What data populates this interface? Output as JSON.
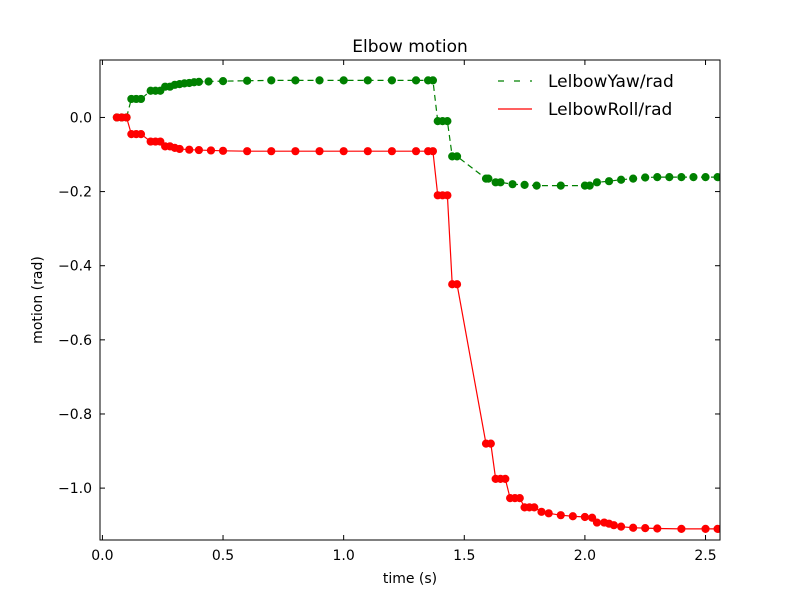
{
  "chart_data": {
    "type": "line",
    "title": "Elbow motion",
    "xlabel": "time (s)",
    "ylabel": "motion (rad)",
    "xlim": [
      -0.01,
      2.56
    ],
    "ylim": [
      -1.14,
      0.155
    ],
    "xticks": [
      0.0,
      0.5,
      1.0,
      1.5,
      2.0,
      2.5
    ],
    "xtick_labels": [
      "0.0",
      "0.5",
      "1.0",
      "1.5",
      "2.0",
      "2.5"
    ],
    "yticks": [
      0.0,
      -0.2,
      -0.4,
      -0.6,
      -0.8,
      -1.0
    ],
    "ytick_labels": [
      "0.0",
      "−0.2",
      "−0.4",
      "−0.6",
      "−0.8",
      "−1.0"
    ],
    "grid": false,
    "legend_position": "top-right",
    "series": [
      {
        "name": "LelbowYaw/rad",
        "color": "#008000",
        "line_style": "dashed",
        "marker": "circle",
        "points": [
          [
            0.06,
            0.0
          ],
          [
            0.08,
            0.0
          ],
          [
            0.1,
            0.0
          ],
          [
            0.12,
            0.05
          ],
          [
            0.14,
            0.05
          ],
          [
            0.16,
            0.05
          ],
          [
            0.2,
            0.072
          ],
          [
            0.22,
            0.072
          ],
          [
            0.24,
            0.072
          ],
          [
            0.26,
            0.083
          ],
          [
            0.28,
            0.083
          ],
          [
            0.3,
            0.088
          ],
          [
            0.32,
            0.09
          ],
          [
            0.34,
            0.092
          ],
          [
            0.36,
            0.093
          ],
          [
            0.38,
            0.095
          ],
          [
            0.4,
            0.096
          ],
          [
            0.44,
            0.097
          ],
          [
            0.5,
            0.098
          ],
          [
            0.6,
            0.099
          ],
          [
            0.7,
            0.1
          ],
          [
            0.8,
            0.1
          ],
          [
            0.9,
            0.1
          ],
          [
            1.0,
            0.1
          ],
          [
            1.1,
            0.1
          ],
          [
            1.2,
            0.1
          ],
          [
            1.3,
            0.1
          ],
          [
            1.35,
            0.1
          ],
          [
            1.37,
            0.1
          ],
          [
            1.39,
            -0.01
          ],
          [
            1.41,
            -0.01
          ],
          [
            1.43,
            -0.01
          ],
          [
            1.45,
            -0.105
          ],
          [
            1.47,
            -0.105
          ],
          [
            1.59,
            -0.165
          ],
          [
            1.6,
            -0.165
          ],
          [
            1.63,
            -0.175
          ],
          [
            1.65,
            -0.175
          ],
          [
            1.7,
            -0.18
          ],
          [
            1.75,
            -0.182
          ],
          [
            1.8,
            -0.184
          ],
          [
            1.9,
            -0.184
          ],
          [
            2.0,
            -0.184
          ],
          [
            2.02,
            -0.184
          ],
          [
            2.05,
            -0.175
          ],
          [
            2.1,
            -0.172
          ],
          [
            2.15,
            -0.168
          ],
          [
            2.2,
            -0.165
          ],
          [
            2.25,
            -0.162
          ],
          [
            2.3,
            -0.161
          ],
          [
            2.35,
            -0.161
          ],
          [
            2.4,
            -0.161
          ],
          [
            2.45,
            -0.161
          ],
          [
            2.5,
            -0.161
          ],
          [
            2.55,
            -0.161
          ]
        ]
      },
      {
        "name": "LelbowRoll/rad",
        "color": "#ff0000",
        "line_style": "solid",
        "marker": "circle",
        "points": [
          [
            0.06,
            0.0
          ],
          [
            0.08,
            0.0
          ],
          [
            0.1,
            0.0
          ],
          [
            0.12,
            -0.045
          ],
          [
            0.14,
            -0.045
          ],
          [
            0.16,
            -0.045
          ],
          [
            0.2,
            -0.065
          ],
          [
            0.22,
            -0.065
          ],
          [
            0.24,
            -0.065
          ],
          [
            0.26,
            -0.078
          ],
          [
            0.28,
            -0.078
          ],
          [
            0.3,
            -0.082
          ],
          [
            0.32,
            -0.085
          ],
          [
            0.36,
            -0.087
          ],
          [
            0.4,
            -0.088
          ],
          [
            0.45,
            -0.089
          ],
          [
            0.5,
            -0.09
          ],
          [
            0.6,
            -0.091
          ],
          [
            0.7,
            -0.091
          ],
          [
            0.8,
            -0.091
          ],
          [
            0.9,
            -0.091
          ],
          [
            1.0,
            -0.091
          ],
          [
            1.1,
            -0.091
          ],
          [
            1.2,
            -0.091
          ],
          [
            1.3,
            -0.091
          ],
          [
            1.35,
            -0.091
          ],
          [
            1.37,
            -0.091
          ],
          [
            1.39,
            -0.21
          ],
          [
            1.41,
            -0.21
          ],
          [
            1.43,
            -0.21
          ],
          [
            1.45,
            -0.45
          ],
          [
            1.47,
            -0.45
          ],
          [
            1.59,
            -0.88
          ],
          [
            1.61,
            -0.88
          ],
          [
            1.63,
            -0.975
          ],
          [
            1.65,
            -0.975
          ],
          [
            1.67,
            -0.975
          ],
          [
            1.69,
            -1.027
          ],
          [
            1.71,
            -1.027
          ],
          [
            1.73,
            -1.027
          ],
          [
            1.75,
            -1.052
          ],
          [
            1.77,
            -1.052
          ],
          [
            1.79,
            -1.052
          ],
          [
            1.82,
            -1.064
          ],
          [
            1.85,
            -1.068
          ],
          [
            1.9,
            -1.073
          ],
          [
            1.95,
            -1.076
          ],
          [
            2.0,
            -1.078
          ],
          [
            2.03,
            -1.08
          ],
          [
            2.05,
            -1.093
          ],
          [
            2.08,
            -1.093
          ],
          [
            2.1,
            -1.096
          ],
          [
            2.12,
            -1.1
          ],
          [
            2.15,
            -1.104
          ],
          [
            2.2,
            -1.107
          ],
          [
            2.25,
            -1.108
          ],
          [
            2.3,
            -1.109
          ],
          [
            2.4,
            -1.11
          ],
          [
            2.5,
            -1.11
          ],
          [
            2.55,
            -1.11
          ]
        ]
      }
    ]
  }
}
